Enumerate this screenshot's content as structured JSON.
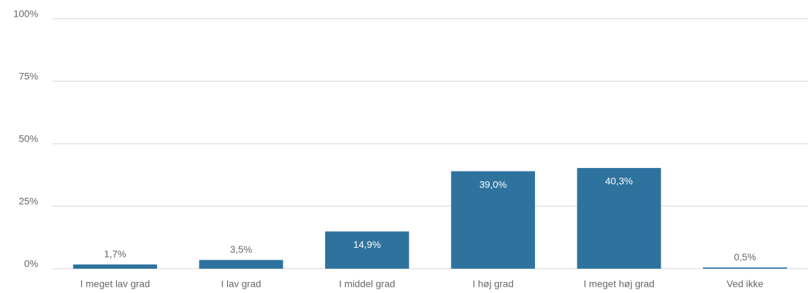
{
  "chart_data": {
    "type": "bar",
    "categories": [
      "I meget lav grad",
      "I lav grad",
      "I middel grad",
      "I høj grad",
      "I meget høj grad",
      "Ved ikke"
    ],
    "values": [
      1.7,
      3.5,
      14.9,
      39.0,
      40.3,
      0.5
    ],
    "value_labels": [
      "1,7%",
      "3,5%",
      "14,9%",
      "39,0%",
      "40,3%",
      "0,5%"
    ],
    "color": "#2e739e",
    "ylim": [
      0,
      100
    ],
    "yticks": [
      {
        "value": 0,
        "label": "0%"
      },
      {
        "value": 25,
        "label": "25%"
      },
      {
        "value": 50,
        "label": "50%"
      },
      {
        "value": 75,
        "label": "75%"
      },
      {
        "value": 100,
        "label": "100%"
      }
    ],
    "grid": true
  }
}
